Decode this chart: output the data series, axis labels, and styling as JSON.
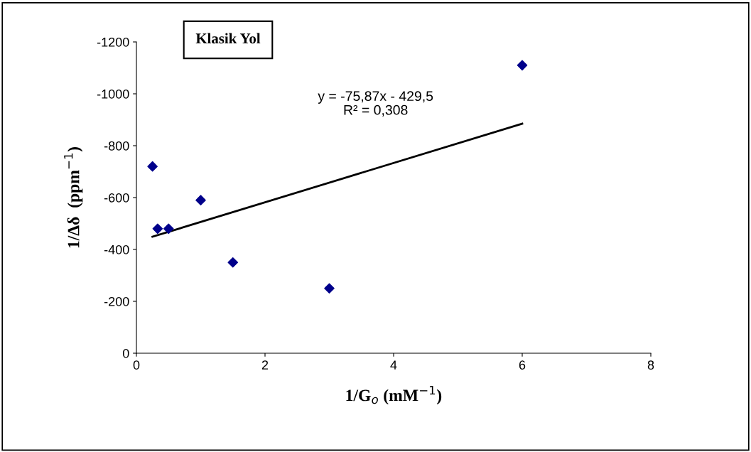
{
  "chart_data": {
    "type": "scatter",
    "title": "Klasik Yol",
    "xlabel": "1/G$_{o}$ (mM$^{−1}$)",
    "ylabel": "1/Δδ  (ppm$^{−1}$)",
    "series": [
      {
        "color": "#00008b",
        "marker": "diamond",
        "x": [
          0.25,
          0.33,
          0.5,
          1,
          1.5,
          3,
          6
        ],
        "values": [
          -720,
          -480,
          -480,
          -590,
          -350,
          -250,
          -1110
        ]
      },
      {
        "type": "line",
        "color": "#000000",
        "marker": "none",
        "line_style": "solid",
        "x": [
          0.25,
          6
        ],
        "values": [
          -449,
          -885
        ]
      }
    ],
    "annotations": [
      "y = -75,87x - 429,5",
      "R² = 0,308"
    ],
    "xlim": [
      0,
      8
    ],
    "xticks": [
      0,
      2,
      4,
      6,
      8
    ],
    "ylim": [
      0,
      -1200
    ],
    "yticks": [
      0,
      -200,
      -400,
      -600,
      -800,
      -1000,
      -1200
    ],
    "grid": false,
    "legend": false
  }
}
